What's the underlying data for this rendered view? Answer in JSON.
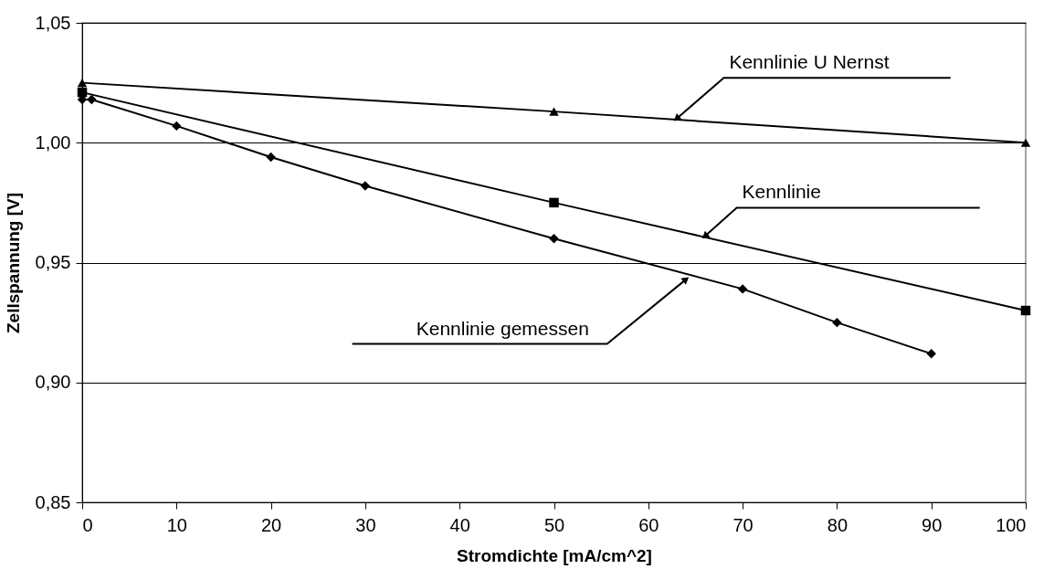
{
  "chart_data": {
    "type": "line",
    "xlabel": "Stromdichte [mA/cm^2]",
    "ylabel": "Zellspannung [V]",
    "xlim": [
      0,
      100
    ],
    "xticks": [
      0,
      10,
      20,
      30,
      40,
      50,
      60,
      70,
      80,
      90,
      100
    ],
    "ylim": [
      0.85,
      1.05
    ],
    "yticks": [
      {
        "value": 0.85,
        "label": "0,85"
      },
      {
        "value": 0.9,
        "label": "0,90"
      },
      {
        "value": 0.95,
        "label": "0,95"
      },
      {
        "value": 1.0,
        "label": "1,00"
      },
      {
        "value": 1.05,
        "label": "1,05"
      }
    ],
    "grid": "y",
    "line_style": "solid",
    "series": [
      {
        "color": "#000000",
        "marker": "triangle",
        "x": [
          0,
          50,
          100
        ],
        "values": [
          1.025,
          1.013,
          1.0
        ]
      },
      {
        "color": "#000000",
        "marker": "square",
        "x": [
          0,
          50,
          100
        ],
        "values": [
          1.021,
          0.975,
          0.93
        ]
      },
      {
        "color": "#000000",
        "marker": "diamond",
        "x": [
          0,
          1,
          10,
          20,
          30,
          50,
          70,
          80,
          90
        ],
        "values": [
          1.018,
          1.018,
          1.007,
          0.994,
          0.982,
          0.96,
          0.939,
          0.925,
          0.912
        ]
      }
    ],
    "annotations": [
      {
        "text": "Kennlinie U Nernst",
        "x": 63,
        "y": 1.01
      },
      {
        "text": "Kennlinie",
        "x": 66,
        "y": 0.961
      },
      {
        "text": "Kennlinie gemessen",
        "x": 64,
        "y": 0.943
      }
    ]
  }
}
